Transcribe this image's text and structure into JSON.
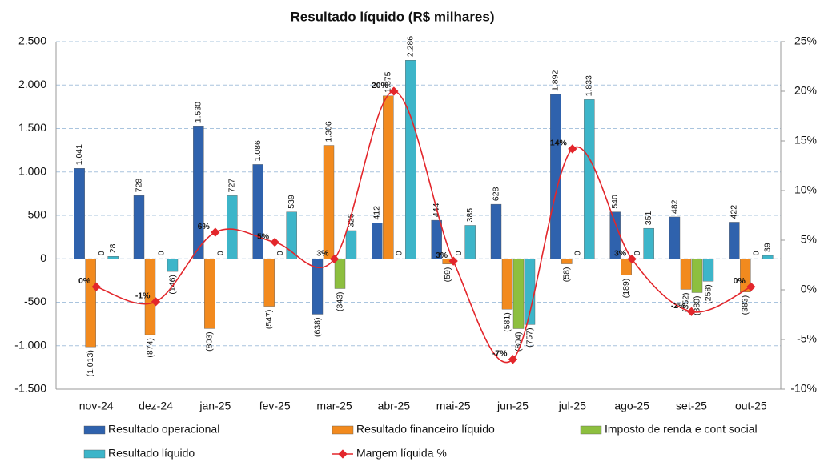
{
  "chart_data": {
    "type": "bar",
    "title": "Resultado líquido (R$ milhares)",
    "categories": [
      "nov-24",
      "dez-24",
      "jan-25",
      "fev-25",
      "mar-25",
      "abr-25",
      "mai-25",
      "jun-25",
      "jul-25",
      "ago-25",
      "set-25",
      "out-25"
    ],
    "series": [
      {
        "name": "Resultado operacional",
        "color": "#2f62ad",
        "values": [
          1041,
          728,
          1530,
          1086,
          -638,
          412,
          444,
          628,
          1892,
          540,
          482,
          422
        ],
        "value_labels": [
          "1.041",
          "728",
          "1.530",
          "1.086",
          "(638)",
          "412",
          "444",
          "628",
          "1.892",
          "540",
          "482",
          "422"
        ]
      },
      {
        "name": "Resultado financeiro líquido",
        "color": "#f28a1e",
        "values": [
          -1013,
          -874,
          -803,
          -547,
          1306,
          1875,
          -59,
          -581,
          -58,
          -189,
          -352,
          -383
        ],
        "value_labels": [
          "(1.013)",
          "(874)",
          "(803)",
          "(547)",
          "1.306",
          "1.875",
          "(59)",
          "(581)",
          "(58)",
          "(189)",
          "(352)",
          "(383)"
        ]
      },
      {
        "name": "Imposto de renda e cont social",
        "color": "#8dbf3f",
        "values": [
          0,
          0,
          0,
          0,
          -343,
          0,
          0,
          -804,
          0,
          0,
          -389,
          0
        ],
        "value_labels": [
          "0",
          "0",
          "0",
          "0",
          "(343)",
          "0",
          "0",
          "(804)",
          "0",
          "0",
          "(389)",
          "0"
        ]
      },
      {
        "name": "Resultado líquido",
        "color": "#3db5c9",
        "values": [
          28,
          -146,
          727,
          539,
          325,
          2286,
          385,
          -757,
          1833,
          351,
          -258,
          39
        ],
        "value_labels": [
          "28",
          "(146)",
          "727",
          "539",
          "325",
          "2.286",
          "385",
          "(757)",
          "1.833",
          "351",
          "(258)",
          "39"
        ]
      },
      {
        "name": "Margem líquida %",
        "color": "#e3262b",
        "type": "line",
        "axis": "y2",
        "values": [
          0.3,
          -1.2,
          5.8,
          4.8,
          3.1,
          20.0,
          2.9,
          -7.0,
          14.2,
          3.1,
          -2.2,
          0.3
        ],
        "value_labels": [
          "0%",
          "-1%",
          "6%",
          "5%",
          "3%",
          "20%",
          "3%",
          "-7%",
          "14%",
          "3%",
          "-2%",
          "0%"
        ]
      }
    ],
    "ylim": [
      -1500,
      2500
    ],
    "yticks": [
      {
        "value": -1500,
        "label": "-1.500"
      },
      {
        "value": -1000,
        "label": "-1.000"
      },
      -500,
      0,
      500,
      {
        "value": 1000,
        "label": "1.000"
      },
      {
        "value": 1500,
        "label": "1.500"
      },
      {
        "value": 2000,
        "label": "2.000"
      },
      {
        "value": 2500,
        "label": "2.500"
      }
    ],
    "y2lim": [
      -10,
      25
    ],
    "y2ticks": [
      {
        "value": -10,
        "label": "-10%"
      },
      {
        "value": -5,
        "label": "-5%"
      },
      {
        "value": 0,
        "label": "0%"
      },
      {
        "value": 5,
        "label": "5%"
      },
      {
        "value": 10,
        "label": "10%"
      },
      {
        "value": 15,
        "label": "15%"
      },
      {
        "value": 20,
        "label": "20%"
      },
      {
        "value": 25,
        "label": "25%"
      }
    ],
    "grid": true,
    "legend": "bottom"
  }
}
